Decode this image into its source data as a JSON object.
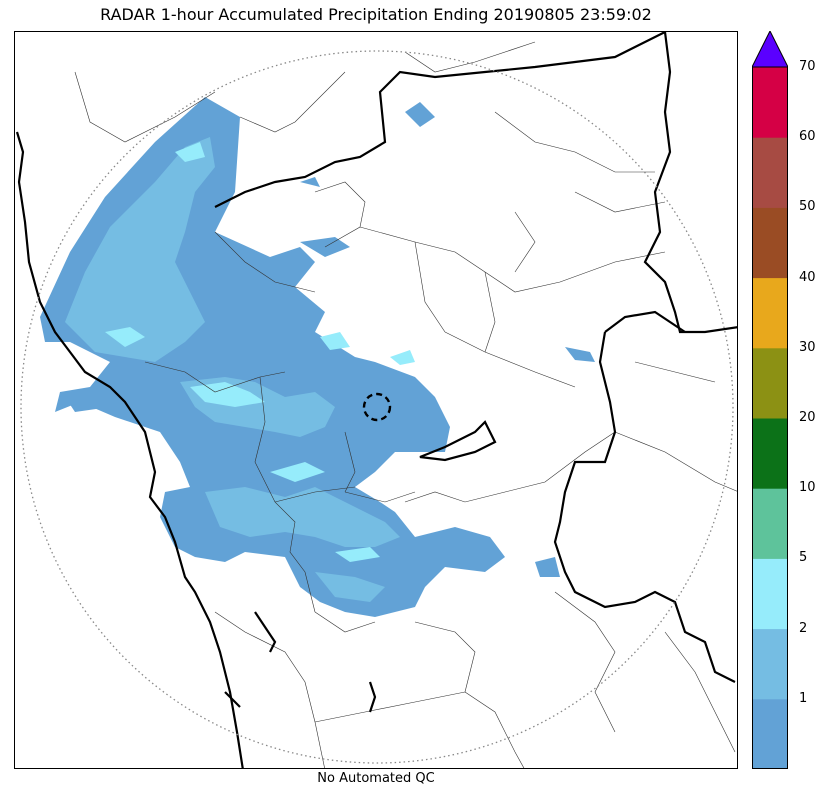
{
  "title": "RADAR 1-hour Accumulated Precipitation Ending 20190805 23:59:02",
  "footer": "No Automated QC",
  "colorbar": {
    "levels": [
      {
        "label": "",
        "color": "#62a2d6"
      },
      {
        "label": "1",
        "color": "#75bde3"
      },
      {
        "label": "2",
        "color": "#96ecfb"
      },
      {
        "label": "5",
        "color": "#5ec39b"
      },
      {
        "label": "10",
        "color": "#0c7218"
      },
      {
        "label": "20",
        "color": "#8c9114"
      },
      {
        "label": "30",
        "color": "#e8a81c"
      },
      {
        "label": "40",
        "color": "#9a4c24"
      },
      {
        "label": "50",
        "color": "#a74b43"
      },
      {
        "label": "60",
        "color": "#d50045"
      },
      {
        "label": "70",
        "color": "#5a00ff"
      }
    ],
    "overflow_color": "#5a00ff"
  },
  "map": {
    "colors": {
      "light_rain": "#62a2d6",
      "moderate_rain": "#75bde3",
      "heavy_rain": "#96ecfb",
      "boundary_thick": "#000000",
      "boundary_thin": "#333333",
      "range_ring": "#888888"
    },
    "radar_site_icon": "dashed-circle-icon"
  }
}
